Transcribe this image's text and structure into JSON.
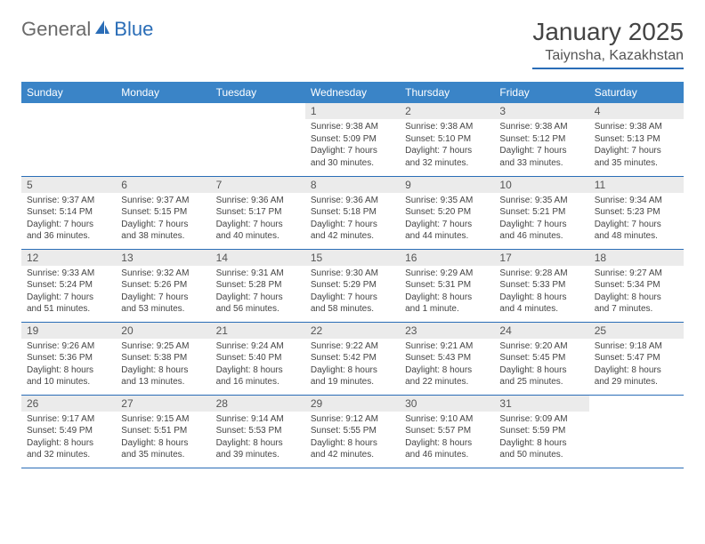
{
  "logo": {
    "part1": "General",
    "part2": "Blue"
  },
  "title": "January 2025",
  "location": "Taiynsha, Kazakhstan",
  "colors": {
    "header_bg": "#3a84c7",
    "accent": "#2a6db7",
    "daynum_bg": "#ebebeb",
    "text": "#444444",
    "logo_gray": "#6a6a6a"
  },
  "day_headers": [
    "Sunday",
    "Monday",
    "Tuesday",
    "Wednesday",
    "Thursday",
    "Friday",
    "Saturday"
  ],
  "weeks": [
    [
      null,
      null,
      null,
      {
        "n": "1",
        "sr": "9:38 AM",
        "ss": "5:09 PM",
        "dl": "7 hours and 30 minutes."
      },
      {
        "n": "2",
        "sr": "9:38 AM",
        "ss": "5:10 PM",
        "dl": "7 hours and 32 minutes."
      },
      {
        "n": "3",
        "sr": "9:38 AM",
        "ss": "5:12 PM",
        "dl": "7 hours and 33 minutes."
      },
      {
        "n": "4",
        "sr": "9:38 AM",
        "ss": "5:13 PM",
        "dl": "7 hours and 35 minutes."
      }
    ],
    [
      {
        "n": "5",
        "sr": "9:37 AM",
        "ss": "5:14 PM",
        "dl": "7 hours and 36 minutes."
      },
      {
        "n": "6",
        "sr": "9:37 AM",
        "ss": "5:15 PM",
        "dl": "7 hours and 38 minutes."
      },
      {
        "n": "7",
        "sr": "9:36 AM",
        "ss": "5:17 PM",
        "dl": "7 hours and 40 minutes."
      },
      {
        "n": "8",
        "sr": "9:36 AM",
        "ss": "5:18 PM",
        "dl": "7 hours and 42 minutes."
      },
      {
        "n": "9",
        "sr": "9:35 AM",
        "ss": "5:20 PM",
        "dl": "7 hours and 44 minutes."
      },
      {
        "n": "10",
        "sr": "9:35 AM",
        "ss": "5:21 PM",
        "dl": "7 hours and 46 minutes."
      },
      {
        "n": "11",
        "sr": "9:34 AM",
        "ss": "5:23 PM",
        "dl": "7 hours and 48 minutes."
      }
    ],
    [
      {
        "n": "12",
        "sr": "9:33 AM",
        "ss": "5:24 PM",
        "dl": "7 hours and 51 minutes."
      },
      {
        "n": "13",
        "sr": "9:32 AM",
        "ss": "5:26 PM",
        "dl": "7 hours and 53 minutes."
      },
      {
        "n": "14",
        "sr": "9:31 AM",
        "ss": "5:28 PM",
        "dl": "7 hours and 56 minutes."
      },
      {
        "n": "15",
        "sr": "9:30 AM",
        "ss": "5:29 PM",
        "dl": "7 hours and 58 minutes."
      },
      {
        "n": "16",
        "sr": "9:29 AM",
        "ss": "5:31 PM",
        "dl": "8 hours and 1 minute."
      },
      {
        "n": "17",
        "sr": "9:28 AM",
        "ss": "5:33 PM",
        "dl": "8 hours and 4 minutes."
      },
      {
        "n": "18",
        "sr": "9:27 AM",
        "ss": "5:34 PM",
        "dl": "8 hours and 7 minutes."
      }
    ],
    [
      {
        "n": "19",
        "sr": "9:26 AM",
        "ss": "5:36 PM",
        "dl": "8 hours and 10 minutes."
      },
      {
        "n": "20",
        "sr": "9:25 AM",
        "ss": "5:38 PM",
        "dl": "8 hours and 13 minutes."
      },
      {
        "n": "21",
        "sr": "9:24 AM",
        "ss": "5:40 PM",
        "dl": "8 hours and 16 minutes."
      },
      {
        "n": "22",
        "sr": "9:22 AM",
        "ss": "5:42 PM",
        "dl": "8 hours and 19 minutes."
      },
      {
        "n": "23",
        "sr": "9:21 AM",
        "ss": "5:43 PM",
        "dl": "8 hours and 22 minutes."
      },
      {
        "n": "24",
        "sr": "9:20 AM",
        "ss": "5:45 PM",
        "dl": "8 hours and 25 minutes."
      },
      {
        "n": "25",
        "sr": "9:18 AM",
        "ss": "5:47 PM",
        "dl": "8 hours and 29 minutes."
      }
    ],
    [
      {
        "n": "26",
        "sr": "9:17 AM",
        "ss": "5:49 PM",
        "dl": "8 hours and 32 minutes."
      },
      {
        "n": "27",
        "sr": "9:15 AM",
        "ss": "5:51 PM",
        "dl": "8 hours and 35 minutes."
      },
      {
        "n": "28",
        "sr": "9:14 AM",
        "ss": "5:53 PM",
        "dl": "8 hours and 39 minutes."
      },
      {
        "n": "29",
        "sr": "9:12 AM",
        "ss": "5:55 PM",
        "dl": "8 hours and 42 minutes."
      },
      {
        "n": "30",
        "sr": "9:10 AM",
        "ss": "5:57 PM",
        "dl": "8 hours and 46 minutes."
      },
      {
        "n": "31",
        "sr": "9:09 AM",
        "ss": "5:59 PM",
        "dl": "8 hours and 50 minutes."
      },
      null
    ]
  ],
  "labels": {
    "sunrise": "Sunrise:",
    "sunset": "Sunset:",
    "daylight": "Daylight:"
  }
}
